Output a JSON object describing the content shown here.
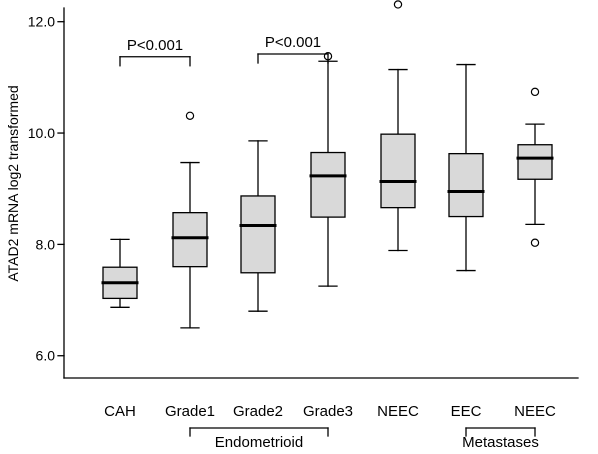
{
  "chart_data": {
    "type": "boxplot",
    "ylabel": "ATAD2 mRNA log2 transformed",
    "ylim": [
      5.6,
      12.3
    ],
    "yticks": [
      6.0,
      8.0,
      10.0,
      12.0
    ],
    "ytick_labels": [
      "6.0",
      "8.0",
      "10.0",
      "12.0"
    ],
    "grid": false,
    "box_color": "#d9d9d9",
    "line_color": "#000000",
    "categories": [
      "CAH",
      "Grade1",
      "Grade2",
      "Grade3",
      "NEEC",
      "EEC",
      "NEEC"
    ],
    "boxes": [
      {
        "label": "CAH",
        "whisker_low": 6.87,
        "q1": 7.03,
        "median": 7.31,
        "q3": 7.59,
        "whisker_high": 8.09,
        "outliers": []
      },
      {
        "label": "Grade1",
        "whisker_low": 6.5,
        "q1": 7.6,
        "median": 8.12,
        "q3": 8.57,
        "whisker_high": 9.47,
        "outliers": [
          10.31
        ]
      },
      {
        "label": "Grade2",
        "whisker_low": 6.8,
        "q1": 7.49,
        "median": 8.34,
        "q3": 8.87,
        "whisker_high": 9.86,
        "outliers": []
      },
      {
        "label": "Grade3",
        "whisker_low": 7.25,
        "q1": 8.49,
        "median": 9.23,
        "q3": 9.65,
        "whisker_high": 11.29,
        "outliers": [
          11.38
        ]
      },
      {
        "label": "NEEC",
        "whisker_low": 7.89,
        "q1": 8.66,
        "median": 9.13,
        "q3": 9.98,
        "whisker_high": 11.14,
        "outliers": [
          12.31
        ]
      },
      {
        "label": "EEC",
        "whisker_low": 7.53,
        "q1": 8.5,
        "median": 8.95,
        "q3": 9.63,
        "whisker_high": 11.23,
        "outliers": []
      },
      {
        "label": "NEEC",
        "whisker_low": 8.36,
        "q1": 9.17,
        "median": 9.55,
        "q3": 9.79,
        "whisker_high": 10.16,
        "outliers": [
          10.74,
          8.03
        ]
      }
    ],
    "annotations": [
      {
        "text": "P<0.001",
        "from": 0,
        "to": 1,
        "y": 11.37
      },
      {
        "text": "P<0.001",
        "from": 2,
        "to": 3,
        "y": 11.42
      }
    ],
    "groups": [
      {
        "label": "Endometrioid",
        "from": 1,
        "to": 3
      },
      {
        "label": "Metastases",
        "from": 5,
        "to": 6
      }
    ]
  }
}
